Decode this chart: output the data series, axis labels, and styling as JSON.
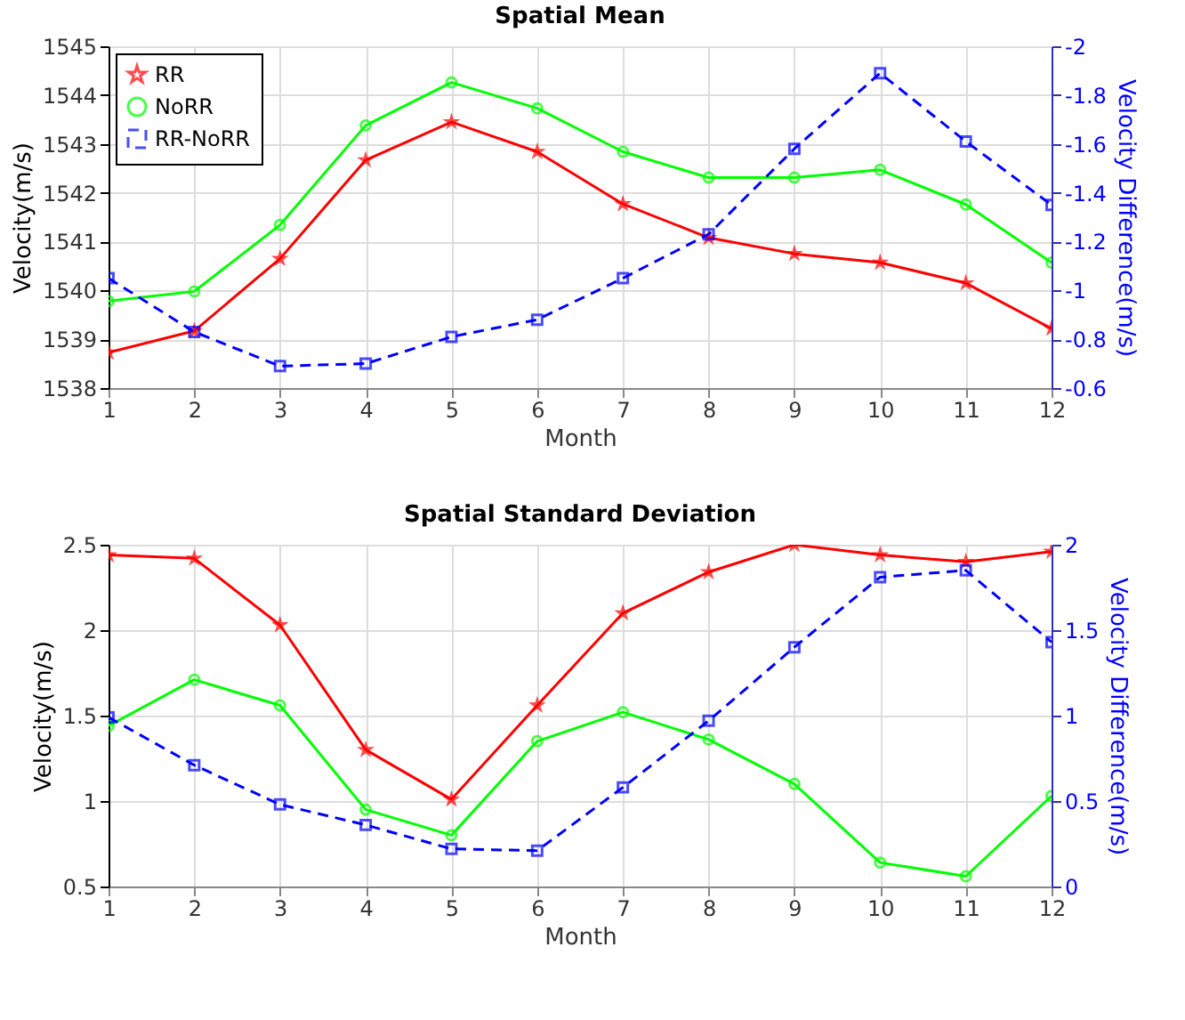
{
  "chart_data": [
    {
      "type": "line",
      "title": "Spatial Mean",
      "xlabel": "Month",
      "ylabel": "Velocity(m/s)",
      "y2label": "Velocity Difference(m/s)",
      "x": [
        1,
        2,
        3,
        4,
        5,
        6,
        7,
        8,
        9,
        10,
        11,
        12
      ],
      "series": [
        {
          "name": "RR",
          "color": "#ff0000",
          "marker": "star",
          "line_style": "solid",
          "values": [
            1538.73,
            1539.17,
            1540.65,
            1542.67,
            1543.45,
            1542.84,
            1541.77,
            1541.08,
            1540.75,
            1540.57,
            1540.15,
            1539.22
          ]
        },
        {
          "name": "NoRR",
          "color": "#00ff00",
          "marker": "circle",
          "line_style": "solid",
          "values": [
            1539.78,
            1539.98,
            1541.34,
            1543.38,
            1544.26,
            1543.73,
            1542.84,
            1542.31,
            1542.31,
            1542.47,
            1541.76,
            1540.57
          ]
        },
        {
          "name": "RR-NoRR",
          "color": "#0000ff",
          "marker": "square",
          "line_style": "dashed",
          "axis": "y2",
          "values": [
            -1.05,
            -0.83,
            -0.69,
            -0.7,
            -0.81,
            -0.88,
            -1.05,
            -1.23,
            -1.58,
            -1.89,
            -1.61,
            -1.35
          ]
        }
      ],
      "xlim": [
        1,
        12
      ],
      "xticks": [
        1,
        2,
        3,
        4,
        5,
        6,
        7,
        8,
        9,
        10,
        11,
        12
      ],
      "ylim": [
        1538,
        1545
      ],
      "yticks": [
        1538,
        1539,
        1540,
        1541,
        1542,
        1543,
        1544,
        1545
      ],
      "y2lim": [
        -0.6,
        -2
      ],
      "y2ticks": [
        -0.6,
        -0.8,
        -1,
        -1.2,
        -1.4,
        -1.6,
        -1.8,
        -2
      ],
      "grid": true,
      "legend": "top left"
    },
    {
      "type": "line",
      "title": "Spatial Standard Deviation",
      "xlabel": "Month",
      "ylabel": "Velocity(m/s)",
      "y2label": "Velocity Difference(m/s)",
      "x": [
        1,
        2,
        3,
        4,
        5,
        6,
        7,
        8,
        9,
        10,
        11,
        12
      ],
      "series": [
        {
          "color": "#ff0000",
          "marker": "star",
          "line_style": "solid",
          "values": [
            2.44,
            2.42,
            2.03,
            1.3,
            1.01,
            1.56,
            2.1,
            2.34,
            2.5,
            2.44,
            2.4,
            2.46
          ]
        },
        {
          "color": "#00ff00",
          "marker": "circle",
          "line_style": "solid",
          "values": [
            1.44,
            1.71,
            1.56,
            0.95,
            0.8,
            1.35,
            1.52,
            1.36,
            1.1,
            0.64,
            0.56,
            1.03
          ]
        },
        {
          "color": "#0000ff",
          "marker": "square",
          "line_style": "dashed",
          "axis": "y2",
          "values": [
            0.99,
            0.71,
            0.48,
            0.36,
            0.22,
            0.21,
            0.58,
            0.97,
            1.4,
            1.81,
            1.85,
            1.43
          ]
        }
      ],
      "xlim": [
        1,
        12
      ],
      "xticks": [
        1,
        2,
        3,
        4,
        5,
        6,
        7,
        8,
        9,
        10,
        11,
        12
      ],
      "ylim": [
        0.5,
        2.5
      ],
      "yticks": [
        0.5,
        1,
        1.5,
        2,
        2.5
      ],
      "y2lim": [
        0,
        2
      ],
      "y2ticks": [
        0,
        0.5,
        1,
        1.5,
        2
      ],
      "grid": true,
      "legend": false
    }
  ]
}
